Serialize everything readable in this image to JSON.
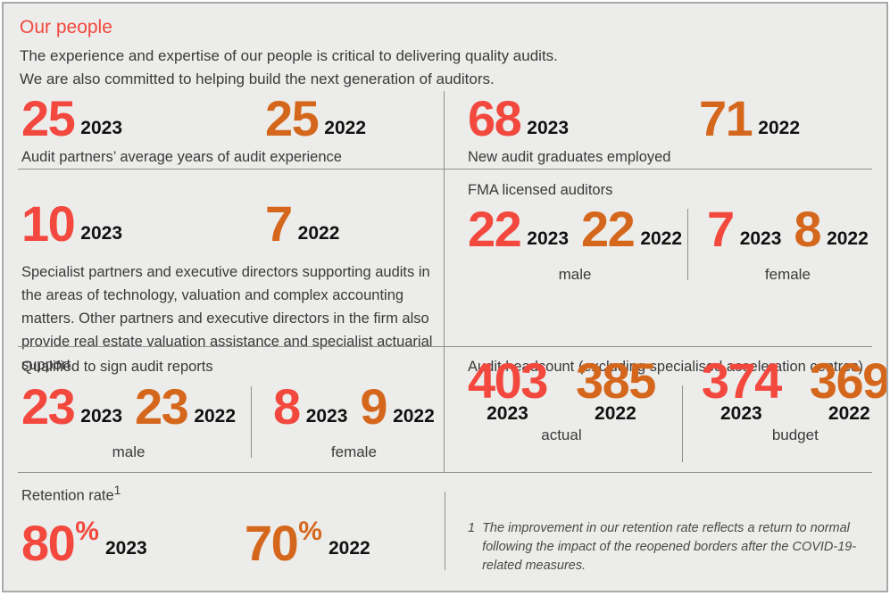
{
  "title": "Our people",
  "intro": {
    "line1": "The experience and expertise of our people is critical to delivering quality audits.",
    "line2": "We are also committed to helping build the next generation of auditors."
  },
  "colors": {
    "year_2023": "#F2483E",
    "year_2022": "#D5671D",
    "background": "#ECECEA",
    "text": "#3A3A3A",
    "divider": "#8F8F8F"
  },
  "sections": {
    "audit_experience": {
      "caption": "Audit partners’ average years of audit experience",
      "stats": [
        {
          "value": "25",
          "year": "2023"
        },
        {
          "value": "25",
          "year": "2022"
        }
      ]
    },
    "graduates": {
      "caption": "New audit graduates employed",
      "stats": [
        {
          "value": "68",
          "year": "2023"
        },
        {
          "value": "71",
          "year": "2022"
        }
      ]
    },
    "specialist_partners": {
      "caption": "Specialist partners and executive directors supporting audits in the areas of technology, valuation and complex accounting matters. Other partners and executive directors in the firm also provide real estate valuation assistance and specialist actuarial support.",
      "stats": [
        {
          "value": "10",
          "year": "2023"
        },
        {
          "value": "7",
          "year": "2022"
        }
      ]
    },
    "fma_licensed": {
      "heading": "FMA licensed auditors",
      "groups": [
        {
          "label": "male",
          "stats": [
            {
              "value": "22",
              "year": "2023"
            },
            {
              "value": "22",
              "year": "2022"
            }
          ]
        },
        {
          "label": "female",
          "stats": [
            {
              "value": "7",
              "year": "2023"
            },
            {
              "value": "8",
              "year": "2022"
            }
          ]
        }
      ]
    },
    "qualified_sign": {
      "heading": "Qualified to sign audit reports",
      "groups": [
        {
          "label": "male",
          "stats": [
            {
              "value": "23",
              "year": "2023"
            },
            {
              "value": "23",
              "year": "2022"
            }
          ]
        },
        {
          "label": "female",
          "stats": [
            {
              "value": "8",
              "year": "2023"
            },
            {
              "value": "9",
              "year": "2022"
            }
          ]
        }
      ]
    },
    "headcount": {
      "heading": "Audit headcount (excluding specialised acceleration centres)",
      "groups": [
        {
          "label": "actual",
          "stats": [
            {
              "value": "403",
              "year": "2023"
            },
            {
              "value": "385",
              "year": "2022"
            }
          ]
        },
        {
          "label": "budget",
          "stats": [
            {
              "value": "374",
              "year": "2023"
            },
            {
              "value": "369",
              "year": "2022"
            }
          ]
        }
      ]
    },
    "retention": {
      "heading": "Retention rate",
      "heading_superscript": "1",
      "stats": [
        {
          "value": "80",
          "suffix": "%",
          "year": "2023"
        },
        {
          "value": "70",
          "suffix": "%",
          "year": "2022"
        }
      ]
    },
    "footnote": {
      "marker": "1",
      "text": "The improvement in our retention rate reflects a return to normal following the impact of the reopened borders after the COVID-19-related measures."
    }
  }
}
